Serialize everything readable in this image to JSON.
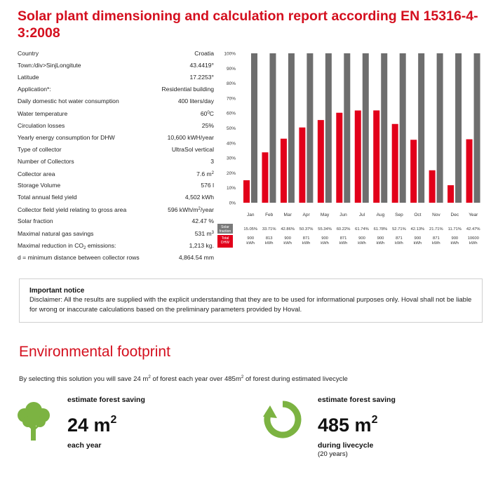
{
  "title": "Solar plant dimensioning and calculation report according EN 15316-4-3:2008",
  "params": [
    {
      "label": "Country",
      "value": "Croatia"
    },
    {
      "label": "Town:/div>SinjLongitute",
      "value": "43.4419°"
    },
    {
      "label": "Latitude",
      "value": "17.2253°"
    },
    {
      "label": "Application*:",
      "value": "Residential building"
    },
    {
      "label": "Daily domestic hot water consumption",
      "value": "400 liters/day"
    },
    {
      "label": "Water temperature",
      "value": "60",
      "suffix_sup": "0",
      "suffix": "C"
    },
    {
      "label": "Circulation losses",
      "value": "25%"
    },
    {
      "label": "Yearly energy consumption for DHW",
      "value": "10,600 kWH/year"
    },
    {
      "label": "Type of collector",
      "value": "UltraSol vertical"
    },
    {
      "label": "Number of Collectors",
      "value": "3"
    },
    {
      "label": "Collector area",
      "value": "7.6 m",
      "suffix_sup": "2"
    },
    {
      "label": "Storage Volume",
      "value": "576 l"
    },
    {
      "label": "Total annual field yield",
      "value": "4,502 kWh"
    },
    {
      "label": "Collector field yield relating to gross area",
      "value": "596 kWh/m",
      "suffix_sup": "2",
      "suffix": "/year"
    },
    {
      "label": "Solar fraction",
      "value": "42.47 %"
    },
    {
      "label": "Maximal natural gas savings",
      "value": "531 m",
      "suffix_sup": "3"
    },
    {
      "label": "Maximal reduction in CO",
      "label_sub": "2",
      "label_suffix": " emissions:",
      "value": "1,213 kg."
    },
    {
      "label": "d = minimum distance between collector rows",
      "value": "4,864.54 mm"
    }
  ],
  "chart_data": {
    "type": "bar",
    "categories": [
      "Jan",
      "Feb",
      "Mar",
      "Apr",
      "May",
      "Jun",
      "Jul",
      "Aug",
      "Sep",
      "Oct",
      "Nov",
      "Dec",
      "Year"
    ],
    "series": [
      {
        "name": "Solar fraction",
        "values": [
          15.05,
          33.71,
          42.86,
          50.37,
          55.34,
          60.22,
          61.74,
          61.78,
          52.71,
          42.13,
          21.71,
          11.71,
          42.47
        ],
        "color": "#e2001a"
      },
      {
        "name": "Total DHW",
        "values": [
          100,
          100,
          100,
          100,
          100,
          100,
          100,
          100,
          100,
          100,
          100,
          100,
          100
        ],
        "color": "#6e6e6e"
      }
    ],
    "yticks": [
      "100%",
      "90%",
      "80%",
      "70%",
      "60%",
      "50%",
      "40%",
      "30%",
      "20%",
      "10%",
      "0%"
    ],
    "ylim": [
      0,
      100
    ],
    "table_rows": [
      {
        "header": [
          "Solar",
          "fraction"
        ],
        "header_color": "#7a7a7a",
        "cells": [
          "15.05%",
          "33.71%",
          "42.86%",
          "50.37%",
          "55.34%",
          "60.22%",
          "61.74%",
          "61.78%",
          "52.71%",
          "42.13%",
          "21.71%",
          "11.71%",
          "42.47%"
        ]
      },
      {
        "header": [
          "Total",
          "DHW"
        ],
        "header_color": "#e2001a",
        "cells": [
          [
            "900",
            "kWh"
          ],
          [
            "813",
            "kWh"
          ],
          [
            "900",
            "kWh"
          ],
          [
            "871",
            "kWh"
          ],
          [
            "900",
            "kWh"
          ],
          [
            "871",
            "kWh"
          ],
          [
            "900",
            "kWh"
          ],
          [
            "900",
            "kWh"
          ],
          [
            "871",
            "kWh"
          ],
          [
            "900",
            "kWh"
          ],
          [
            "871",
            "kWh"
          ],
          [
            "900",
            "kWh"
          ],
          [
            "10600",
            "kWh"
          ]
        ]
      }
    ]
  },
  "notice": {
    "title": "Important notice",
    "text": "Disclaimer: All the results are supplied with the explicit understanding that they are to be used for informational purposes only. Hoval shall not be liable for wrong or inaccurate calculations based on the preliminary parameters provided by Hoval."
  },
  "environment": {
    "title": "Environmental footprint",
    "desc_part1": "By selecting this solution you will save 24 m",
    "desc_sup1": "2",
    "desc_part2": " of forest each year over 485m",
    "desc_sup2": "2",
    "desc_part3": " of forest during estimated livecycle",
    "left": {
      "label": "estimate forest saving",
      "value": "24 m",
      "sup": "2",
      "sub": "each year",
      "icon": "tree-icon"
    },
    "right": {
      "label": "estimate forest saving",
      "value": "485 m",
      "sup": "2",
      "sub": "during livecycle",
      "sub2": "(20 years)",
      "icon": "recycle-arrow-icon"
    }
  },
  "colors": {
    "accent": "#d40f1e",
    "bar_red": "#e2001a",
    "bar_grey": "#6e6e6e",
    "icon_green": "#7cb342"
  }
}
